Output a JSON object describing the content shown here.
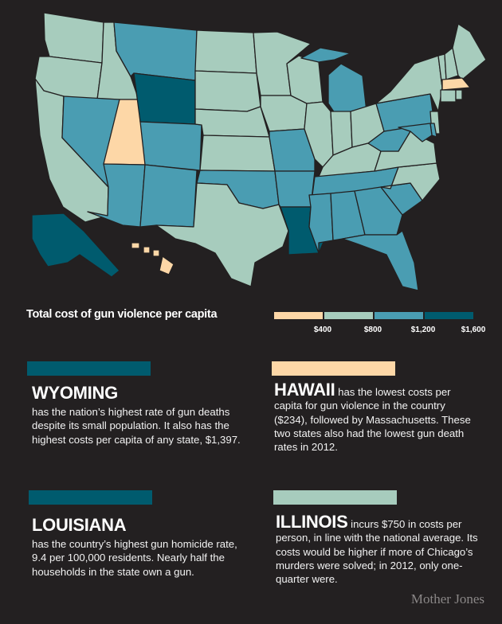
{
  "colors": {
    "background": "#232021",
    "tier1": "#fdd7a7",
    "tier2": "#a7ccbd",
    "tier3": "#4a9db2",
    "tier4": "#005b6e"
  },
  "legend": {
    "title": "Total cost of gun violence per capita",
    "ticks": [
      "$400",
      "$800",
      "$1,200",
      "$1,600"
    ],
    "categories": [
      {
        "upper": 400,
        "color": "#fdd7a7"
      },
      {
        "upper": 800,
        "color": "#a7ccbd"
      },
      {
        "upper": 1200,
        "color": "#4a9db2"
      },
      {
        "upper": 1600,
        "color": "#005b6e"
      }
    ]
  },
  "callouts": {
    "wyoming": {
      "color": "#005b6e",
      "name": "WYOMING",
      "text": "has the nation’s highest rate of gun deaths despite its small population. It also has the highest costs per capita of any state, $1,397."
    },
    "hawaii": {
      "color": "#fdd7a7",
      "name": "HAWAII",
      "text": "has the lowest costs per capita for gun violence in the country ($234), followed by Massachusetts. These two states also had the lowest gun death rates in 2012."
    },
    "louisiana": {
      "color": "#005b6e",
      "name": "LOUISIANA",
      "text": "has the country’s highest gun homicide rate, 9.4 per 100,000 residents. Nearly half the households in the state own a gun."
    },
    "illinois": {
      "color": "#a7ccbd",
      "name": "ILLINOIS",
      "text": "incurs $750 in costs per person, in line with the national average. Its costs would be higher if more of Chicago’s murders were solved; in 2012, only one-quarter were."
    }
  },
  "credit": "Mother Jones",
  "map_data": {
    "WA": "tier2",
    "OR": "tier2",
    "CA": "tier2",
    "ID": "tier2",
    "NV": "tier3",
    "UT": "tier1",
    "AZ": "tier3",
    "MT": "tier3",
    "WY": "tier4",
    "CO": "tier3",
    "NM": "tier3",
    "ND": "tier2",
    "SD": "tier2",
    "NE": "tier2",
    "KS": "tier2",
    "OK": "tier3",
    "TX": "tier2",
    "MN": "tier2",
    "IA": "tier2",
    "MO": "tier3",
    "AR": "tier3",
    "LA": "tier4",
    "WI": "tier2",
    "IL": "tier2",
    "MI": "tier3",
    "IN": "tier2",
    "OH": "tier2",
    "KY": "tier2",
    "TN": "tier3",
    "MS": "tier3",
    "AL": "tier3",
    "GA": "tier3",
    "FL": "tier3",
    "SC": "tier3",
    "NC": "tier2",
    "VA": "tier2",
    "WV": "tier3",
    "PA": "tier3",
    "NY": "tier2",
    "VT": "tier2",
    "NH": "tier2",
    "ME": "tier2",
    "MA": "tier1",
    "CT": "tier2",
    "RI": "tier2",
    "NJ": "tier2",
    "DE": "tier3",
    "MD": "tier3",
    "AK": "tier4",
    "HI": "tier1"
  }
}
